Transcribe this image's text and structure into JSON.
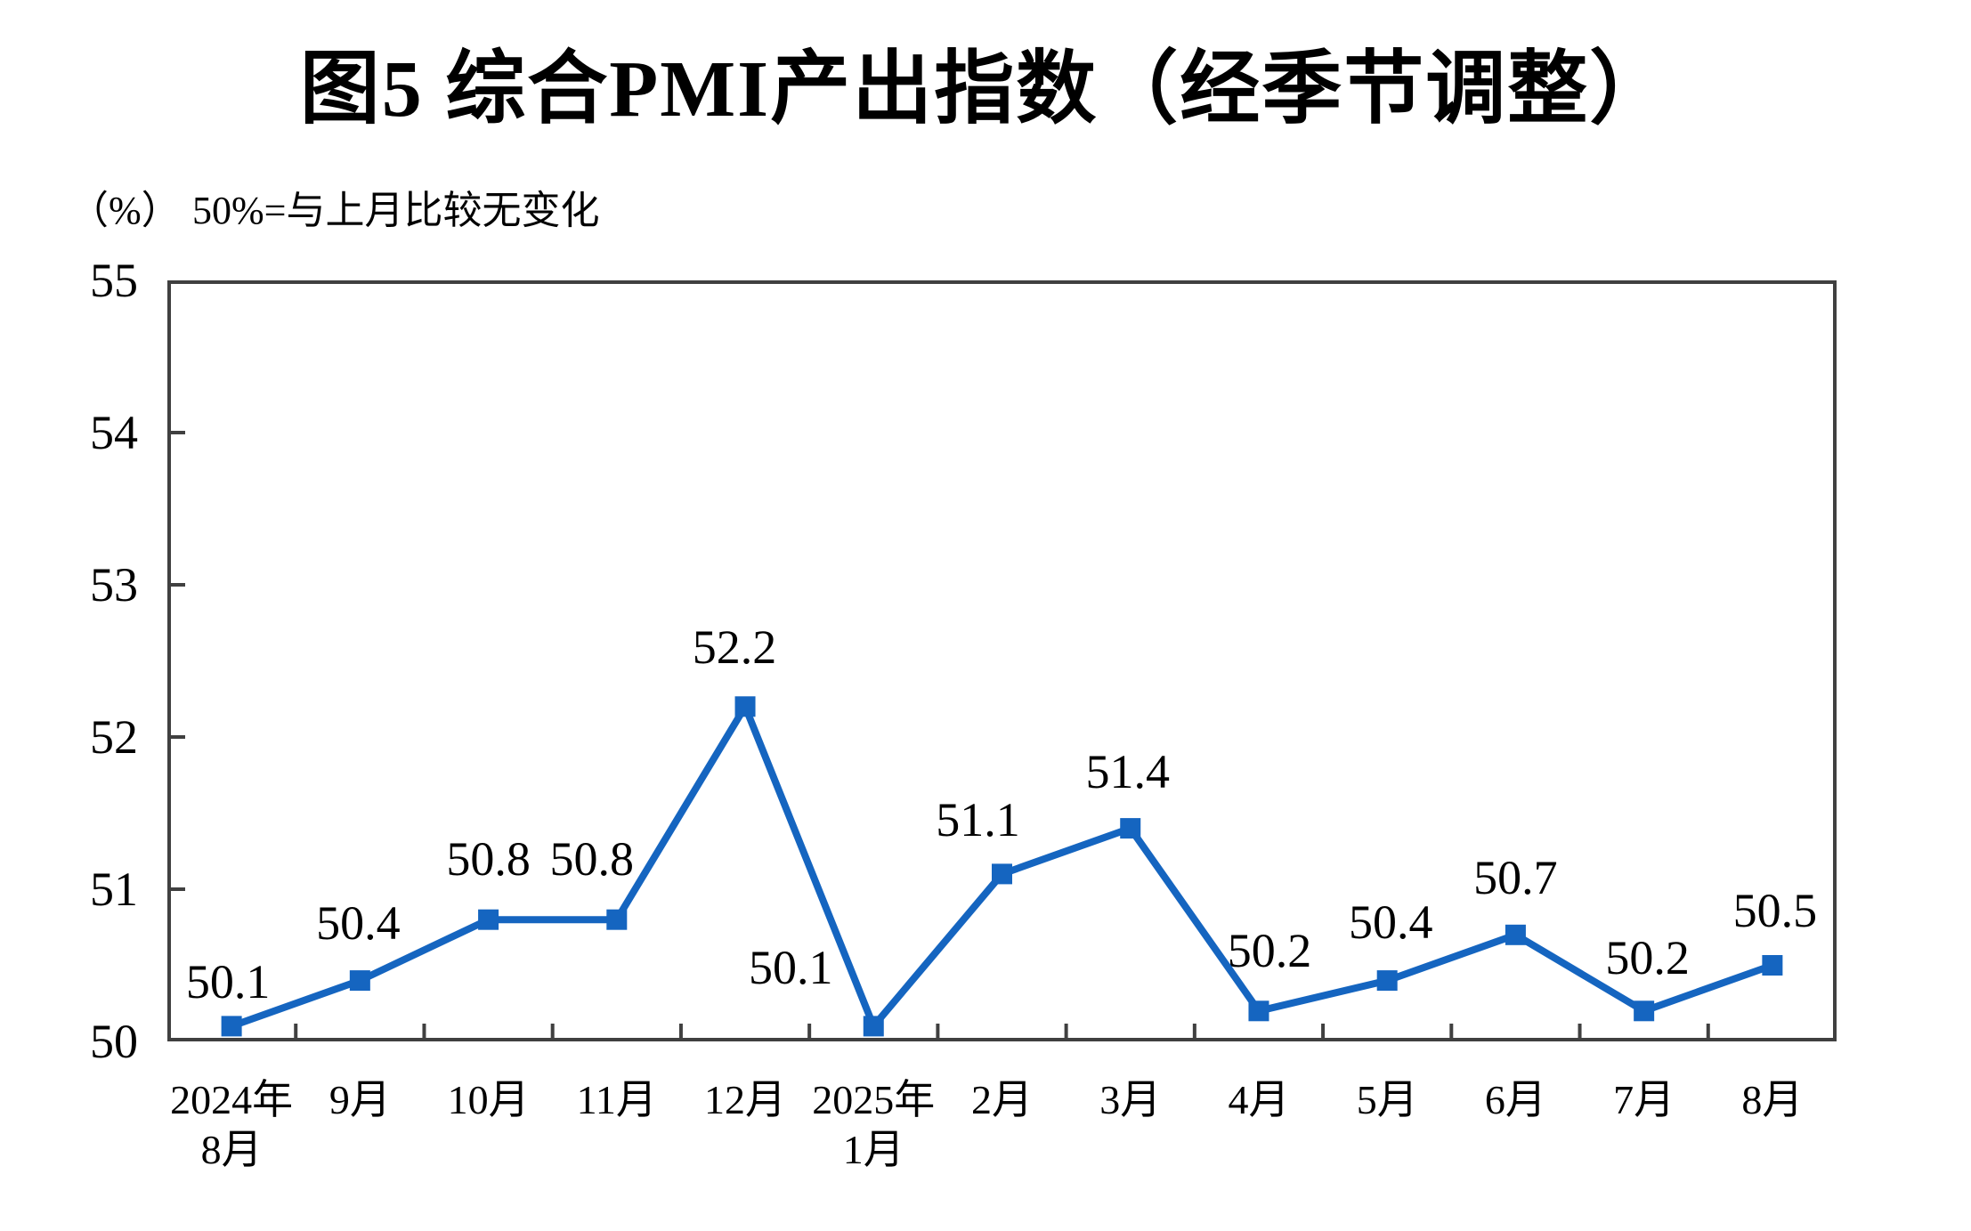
{
  "title": "图5 综合PMI产出指数（经季节调整）",
  "unit_label": "（%）",
  "note": "50%=与上月比较无变化",
  "colors": {
    "line": "#1565C0",
    "axis": "#404040",
    "text": "#000000",
    "background": "#ffffff"
  },
  "chart_data": {
    "type": "line",
    "title": "图5 综合PMI产出指数（经季节调整）",
    "unit": "（%）",
    "note": "50%=与上月比较无变化",
    "categories": [
      [
        "2024年",
        "8月"
      ],
      [
        "9月"
      ],
      [
        "10月"
      ],
      [
        "11月"
      ],
      [
        "12月"
      ],
      [
        "2025年",
        "1月"
      ],
      [
        "2月"
      ],
      [
        "3月"
      ],
      [
        "4月"
      ],
      [
        "5月"
      ],
      [
        "6月"
      ],
      [
        "7月"
      ],
      [
        "8月"
      ]
    ],
    "values": [
      50.1,
      50.4,
      50.8,
      50.8,
      52.2,
      50.1,
      51.1,
      51.4,
      50.2,
      50.4,
      50.7,
      50.2,
      50.5
    ],
    "data_labels": [
      "50.1",
      "50.4",
      "50.8",
      "50.8",
      "52.2",
      "50.1",
      "51.1",
      "51.4",
      "50.2",
      "50.4",
      "50.7",
      "50.2",
      "50.5"
    ],
    "ylim": [
      50,
      55
    ],
    "yticks": [
      50,
      51,
      52,
      53,
      54,
      55
    ],
    "grid": false,
    "legend": "none",
    "marker": "square",
    "line_color": "#1565C0"
  }
}
